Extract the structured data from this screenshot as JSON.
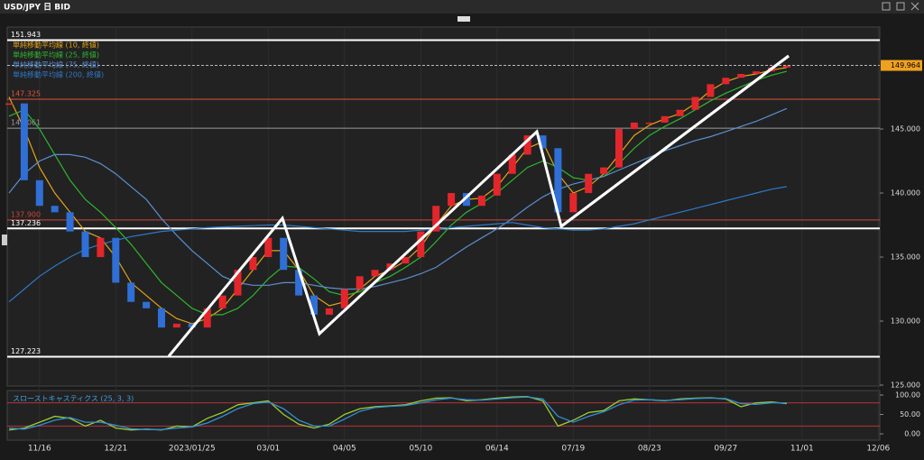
{
  "chart_data": {
    "type": "candlestick",
    "title": "USD/JPY 日 BID",
    "categories": [
      null,
      null,
      "11/16",
      null,
      null,
      null,
      null,
      "12/21",
      null,
      null,
      null,
      null,
      "2023/01/25",
      null,
      null,
      null,
      null,
      "03/01",
      null,
      null,
      null,
      null,
      "04/05",
      null,
      null,
      null,
      null,
      "05/10",
      null,
      null,
      null,
      null,
      "06/14",
      null,
      null,
      null,
      null,
      "07/19",
      null,
      null,
      null,
      null,
      "08/23",
      null,
      null,
      null,
      null,
      "09/27",
      null,
      null,
      null,
      null,
      "11/01",
      null,
      null,
      null,
      null,
      "12/06"
    ],
    "price": {
      "up_color": "#e3262b",
      "down_color": "#2f6fd6",
      "values": [
        147,
        141,
        139,
        138.5,
        137,
        135,
        136.5,
        133,
        131.5,
        131,
        129.5,
        129.8,
        129.5,
        131,
        132,
        134,
        135,
        136.5,
        134,
        132,
        130.5,
        131,
        132.5,
        133.5,
        134,
        134.5,
        135,
        137,
        139,
        140,
        139,
        139.8,
        141.5,
        143,
        144.5,
        143.5,
        138.5,
        140,
        141.5,
        142,
        145,
        145.5,
        145.5,
        146,
        146.5,
        147.5,
        148.5,
        149,
        149.3,
        149.5,
        149.8,
        149.96,
        null,
        null,
        null,
        null,
        null,
        null
      ]
    },
    "series": [
      {
        "name": "単純移動平均線 (10, 終値)",
        "color": "#e3a21a",
        "values": [
          147.5,
          145,
          142,
          140,
          138.5,
          137,
          136.5,
          135,
          133,
          132,
          131,
          130.2,
          129.8,
          130.2,
          131,
          132.5,
          134,
          135.5,
          135.5,
          134,
          132,
          131.2,
          131.5,
          132.5,
          133.5,
          134,
          134.7,
          135.8,
          137.5,
          139,
          139.5,
          139.6,
          140.5,
          142,
          143.5,
          144,
          141.5,
          140,
          140.5,
          141.5,
          143,
          144.5,
          145.3,
          145.8,
          146.2,
          147,
          148,
          148.7,
          149.1,
          149.3,
          149.6,
          149.8,
          null,
          null,
          null,
          null,
          null,
          null
        ]
      },
      {
        "name": "単純移動平均線 (25, 終値)",
        "color": "#2fb52f",
        "values": [
          146,
          146.5,
          145,
          143,
          141,
          139.5,
          138.5,
          137.3,
          136,
          134.5,
          133,
          132,
          131,
          130.5,
          130.5,
          131,
          132,
          133.3,
          134.3,
          134.2,
          133.3,
          132.3,
          132,
          132.3,
          133,
          133.5,
          134.2,
          135,
          136.2,
          137.5,
          138.5,
          139.2,
          140,
          141,
          142,
          142.5,
          142,
          141.2,
          141,
          141.3,
          142.3,
          143.5,
          144.5,
          145.2,
          145.8,
          146.5,
          147.2,
          147.8,
          148.3,
          148.8,
          149.2,
          149.5,
          null,
          null,
          null,
          null,
          null,
          null
        ]
      },
      {
        "name": "単純移動平均線 (75, 終値)",
        "color": "#5a8fd0",
        "values": [
          140,
          141.5,
          142.5,
          143,
          143,
          142.8,
          142.3,
          141.5,
          140.5,
          139.5,
          138,
          136.7,
          135.5,
          134.5,
          133.5,
          133,
          132.8,
          132.8,
          133,
          133,
          132.8,
          132.6,
          132.5,
          132.5,
          132.7,
          133,
          133.3,
          133.7,
          134.2,
          135,
          135.8,
          136.5,
          137.2,
          138,
          138.9,
          139.7,
          140.3,
          140.7,
          141,
          141.3,
          141.8,
          142.3,
          142.8,
          143.3,
          143.7,
          144.1,
          144.4,
          144.8,
          145.2,
          145.6,
          146.1,
          146.6,
          null,
          null,
          null,
          null,
          null,
          null
        ]
      },
      {
        "name": "単純移動平均線 (200, 終値)",
        "color": "#2e79c7",
        "values": [
          131.5,
          132.5,
          133.5,
          134.3,
          135,
          135.6,
          136,
          136.3,
          136.6,
          136.8,
          137,
          137.1,
          137.2,
          137.3,
          137.35,
          137.4,
          137.45,
          137.5,
          137.5,
          137.4,
          137.3,
          137.2,
          137.1,
          137,
          137,
          137,
          137,
          137.1,
          137.2,
          137.3,
          137.4,
          137.5,
          137.6,
          137.7,
          137.5,
          137.3,
          137.2,
          137.1,
          137.1,
          137.2,
          137.4,
          137.6,
          137.9,
          138.2,
          138.5,
          138.8,
          139.1,
          139.4,
          139.7,
          140,
          140.3,
          140.5,
          null,
          null,
          null,
          null,
          null,
          null
        ]
      }
    ],
    "ylim": [
      124.93,
      152.96
    ],
    "yticks": [
      {
        "value": 125,
        "label": "125.000"
      },
      {
        "value": 130,
        "label": "130.000"
      },
      {
        "value": 135,
        "label": "135.000"
      },
      {
        "value": 140,
        "label": "140.000"
      },
      {
        "value": 145,
        "label": "145.000"
      }
    ],
    "levels": [
      {
        "value": 151.943,
        "color": "#ffffff"
      },
      {
        "value": 147.325,
        "color": "#e0533a"
      },
      {
        "value": 145.061,
        "color": "#9a9a9a"
      },
      {
        "value": 137.9,
        "label": "137.900",
        "color": "#c9473d"
      },
      {
        "value": 137.236,
        "color": "#ffffff"
      },
      {
        "value": 127.223,
        "color": "#ffffff"
      }
    ],
    "current_price": {
      "value": 149.964,
      "color": "#f0a020"
    },
    "stochastic": {
      "title": "スローストキャスティクス (25, 3, 3)",
      "ylim": [
        0,
        100
      ],
      "yticks": [
        {
          "value": 0,
          "label": "0.00"
        },
        {
          "value": 50,
          "label": "50.00"
        },
        {
          "value": 100,
          "label": "100.00"
        }
      ],
      "levels": [
        20,
        80
      ],
      "series": [
        {
          "color": "#9acd32",
          "values": [
            10,
            15,
            30,
            45,
            40,
            20,
            35,
            15,
            10,
            12,
            10,
            20,
            18,
            40,
            55,
            75,
            80,
            85,
            50,
            25,
            15,
            25,
            50,
            65,
            70,
            72,
            75,
            85,
            92,
            93,
            85,
            88,
            92,
            95,
            96,
            85,
            20,
            35,
            55,
            60,
            85,
            90,
            88,
            85,
            90,
            92,
            93,
            90,
            70,
            80,
            82,
            78,
            null,
            null,
            null,
            null,
            null,
            null
          ]
        },
        {
          "color": "#2f8fd6",
          "values": [
            15,
            12,
            22,
            35,
            42,
            30,
            30,
            22,
            13,
            11,
            11,
            15,
            18,
            28,
            45,
            65,
            78,
            82,
            65,
            35,
            20,
            20,
            38,
            58,
            68,
            71,
            73,
            80,
            88,
            92,
            88,
            87,
            90,
            93,
            95,
            90,
            45,
            30,
            45,
            57,
            75,
            87,
            88,
            86,
            88,
            91,
            92,
            91,
            78,
            76,
            80,
            80,
            null,
            null,
            null,
            null,
            null,
            null
          ]
        }
      ]
    }
  }
}
